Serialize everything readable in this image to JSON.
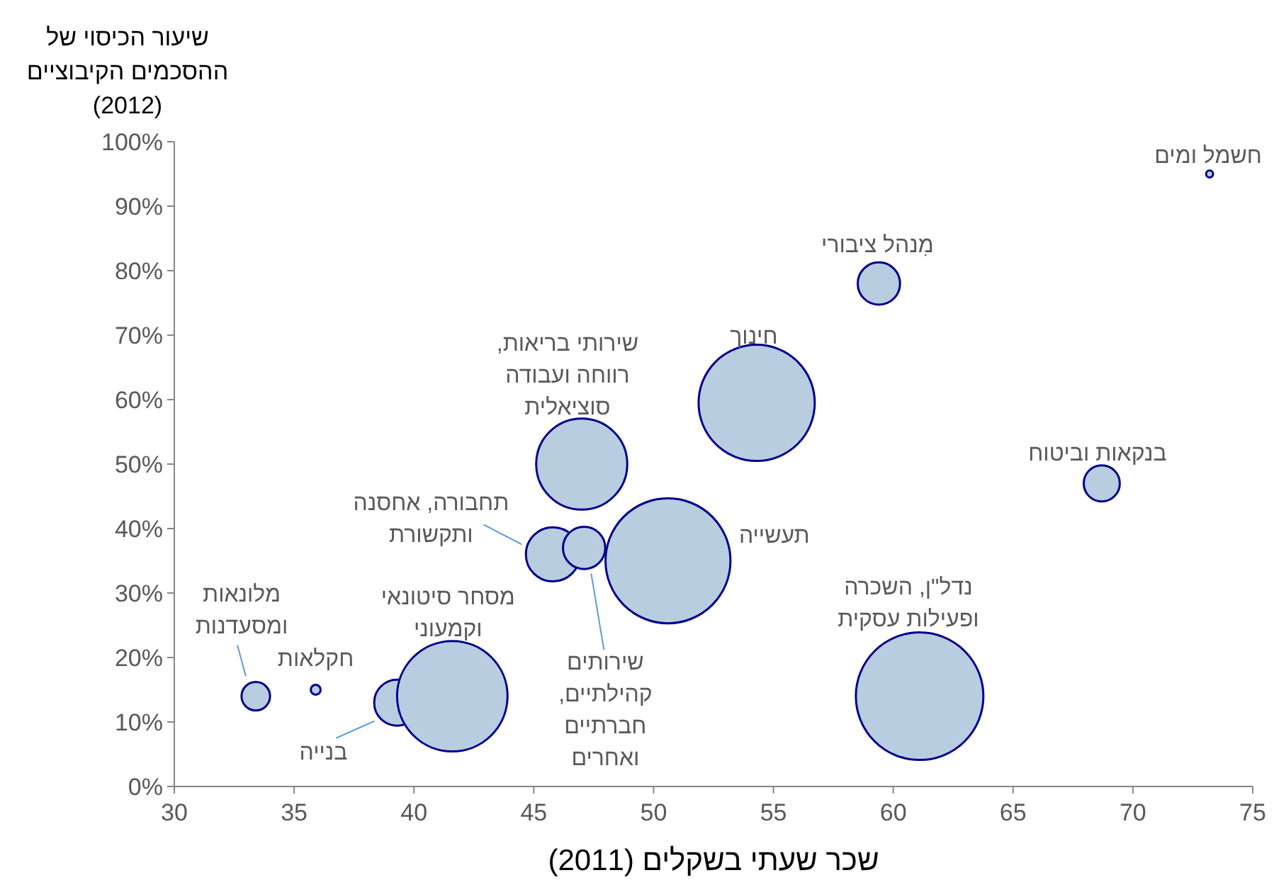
{
  "chart_data": {
    "type": "bubble",
    "ylabel": "שיעור הכיסוי של\nההסכמים הקיבוציים\n(2012)",
    "xlabel": "שכר שעתי בשקלים (2011)",
    "xlim": [
      30,
      75
    ],
    "xticks": [
      30,
      35,
      40,
      45,
      50,
      55,
      60,
      65,
      70,
      75
    ],
    "ylim": [
      0,
      100
    ],
    "yticks": [
      {
        "value": 0,
        "label": "0%"
      },
      {
        "value": 10,
        "label": "10%"
      },
      {
        "value": 20,
        "label": "20%"
      },
      {
        "value": 30,
        "label": "30%"
      },
      {
        "value": 40,
        "label": "40%"
      },
      {
        "value": 50,
        "label": "50%"
      },
      {
        "value": 60,
        "label": "60%"
      },
      {
        "value": 70,
        "label": "70%"
      },
      {
        "value": 80,
        "label": "80%"
      },
      {
        "value": 90,
        "label": "90%"
      },
      {
        "value": 100,
        "label": "100%"
      }
    ],
    "grid": false,
    "series": [
      {
        "name": "מלונאות ומסעדנות",
        "color": "#b9cde1",
        "x": [
          33.4
        ],
        "values": [
          14
        ],
        "sizes": [
          0.05
        ]
      },
      {
        "name": "חקלאות",
        "color": "#b9cde1",
        "x": [
          35.9
        ],
        "values": [
          15
        ],
        "sizes": [
          0.006
        ]
      },
      {
        "name": "בנייה",
        "color": "#b9cde1",
        "x": [
          39.3
        ],
        "values": [
          13
        ],
        "sizes": [
          0.13
        ]
      },
      {
        "name": "מסחר סיטונאי וקמעוני",
        "color": "#b9cde1",
        "x": [
          41.6
        ],
        "values": [
          14
        ],
        "sizes": [
          0.75
        ]
      },
      {
        "name": "תחבורה, אחסנה ותקשורת",
        "color": "#b9cde1",
        "x": [
          45.8
        ],
        "values": [
          36
        ],
        "sizes": [
          0.18
        ]
      },
      {
        "name": "שירותים קהילתיים, חברתיים ואחרים",
        "color": "#b9cde1",
        "x": [
          47.1
        ],
        "values": [
          37
        ],
        "sizes": [
          0.11
        ]
      },
      {
        "name": "שירותי בריאות, רווחה ועבודה סוציאלית",
        "color": "#b9cde1",
        "x": [
          47
        ],
        "values": [
          50
        ],
        "sizes": [
          0.51
        ]
      },
      {
        "name": "תעשייה",
        "color": "#b9cde1",
        "x": [
          50.6
        ],
        "values": [
          35
        ],
        "sizes": [
          0.96
        ]
      },
      {
        "name": "חינוך",
        "color": "#b9cde1",
        "x": [
          54.3
        ],
        "values": [
          59.5
        ],
        "sizes": [
          0.83
        ]
      },
      {
        "name": "מִנהל ציבורי",
        "color": "#b9cde1",
        "x": [
          59.4
        ],
        "values": [
          78
        ],
        "sizes": [
          0.11
        ]
      },
      {
        "name": "נדל\"ן, השכרה ופעילות עסקית",
        "color": "#b9cde1",
        "x": [
          61.1
        ],
        "values": [
          14
        ],
        "sizes": [
          1
        ]
      },
      {
        "name": "בנקאות וביטוח",
        "color": "#b9cde1",
        "x": [
          68.7
        ],
        "values": [
          47
        ],
        "sizes": [
          0.08
        ]
      },
      {
        "name": "חשמל ומים",
        "color": "#b9cde1",
        "x": [
          73.2
        ],
        "values": [
          95
        ],
        "sizes": [
          0.003
        ]
      }
    ]
  }
}
